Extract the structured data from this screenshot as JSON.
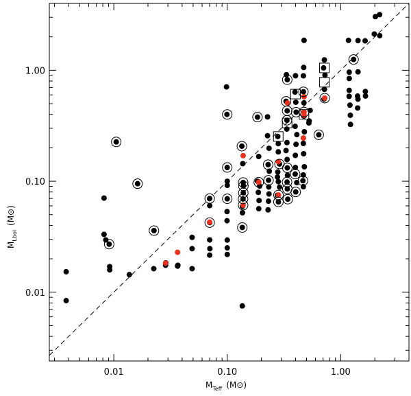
{
  "chart_data": {
    "type": "scatter",
    "xscale": "log",
    "yscale": "log",
    "xlim": [
      0.0027,
      4.0
    ],
    "ylim": [
      0.0024,
      4.0
    ],
    "xticks": [
      {
        "value": 0.01,
        "label": "0.01"
      },
      {
        "value": 0.1,
        "label": "0.10"
      },
      {
        "value": 1.0,
        "label": "1.00"
      }
    ],
    "yticks": [
      {
        "value": 0.01,
        "label": "0.01"
      },
      {
        "value": 0.1,
        "label": "0.10"
      },
      {
        "value": 1.0,
        "label": "1.00"
      }
    ],
    "xlabel": {
      "main": "M",
      "sub": "Teff",
      "unit": "(M⊙)"
    },
    "ylabel": {
      "main": "M",
      "sub": "Lbol",
      "unit": "(M⊙)"
    },
    "reference_line": {
      "style": "dashed",
      "relation": "y = x"
    },
    "grid": false,
    "colors": {
      "black_points": "#000000",
      "red_points": "#e8321e"
    },
    "series": [
      {
        "marker": "filled-circle",
        "color": "#000000",
        "points": [
          [
            0.0038,
            0.0153
          ],
          [
            0.0038,
            0.0084
          ],
          [
            0.0082,
            0.0705
          ],
          [
            0.0082,
            0.0332
          ],
          [
            0.0085,
            0.0296
          ],
          [
            0.0091,
            0.0271
          ],
          [
            0.0092,
            0.017
          ],
          [
            0.0092,
            0.0159
          ],
          [
            0.0105,
            0.226
          ],
          [
            0.0137,
            0.0144
          ],
          [
            0.0162,
            0.095
          ],
          [
            0.0226,
            0.0359
          ],
          [
            0.0225,
            0.0163
          ],
          [
            0.0287,
            0.0184
          ],
          [
            0.0286,
            0.0175
          ],
          [
            0.0365,
            0.0172
          ],
          [
            0.0367,
            0.0175
          ],
          [
            0.049,
            0.0163
          ],
          [
            0.049,
            0.0247
          ],
          [
            0.049,
            0.0312
          ],
          [
            0.07,
            0.0603
          ],
          [
            0.0699,
            0.0698
          ],
          [
            0.0701,
            0.0424
          ],
          [
            0.07,
            0.0296
          ],
          [
            0.0703,
            0.0247
          ],
          [
            0.07,
            0.0216
          ],
          [
            0.0985,
            0.708
          ],
          [
            0.0994,
            0.4
          ],
          [
            0.0999,
            0.133
          ],
          [
            0.1,
            0.1
          ],
          [
            0.1,
            0.0918
          ],
          [
            0.1,
            0.0695
          ],
          [
            0.0996,
            0.0533
          ],
          [
            0.0996,
            0.0441
          ],
          [
            0.1,
            0.0295
          ],
          [
            0.1,
            0.0251
          ],
          [
            0.1,
            0.0219
          ],
          [
            0.1346,
            0.207
          ],
          [
            0.1371,
            0.144
          ],
          [
            0.1382,
            0.0975
          ],
          [
            0.139,
            0.0906
          ],
          [
            0.1386,
            0.0787
          ],
          [
            0.1379,
            0.0692
          ],
          [
            0.1361,
            0.0594
          ],
          [
            0.1363,
            0.052
          ],
          [
            0.1358,
            0.0383
          ],
          [
            0.1358,
            0.00752
          ],
          [
            0.1848,
            0.378
          ],
          [
            0.1894,
            0.167
          ],
          [
            0.1849,
            0.1
          ],
          [
            0.1931,
            0.0905
          ],
          [
            0.1879,
            0.0794
          ],
          [
            0.1908,
            0.067
          ],
          [
            0.1896,
            0.0565
          ],
          [
            0.2266,
            0.38
          ],
          [
            0.2266,
            0.257
          ],
          [
            0.2337,
            0.198
          ],
          [
            0.2294,
            0.141
          ],
          [
            0.2348,
            0.123
          ],
          [
            0.2313,
            0.102
          ],
          [
            0.2325,
            0.0888
          ],
          [
            0.2335,
            0.0768
          ],
          [
            0.2311,
            0.0661
          ],
          [
            0.2291,
            0.0552
          ],
          [
            0.2789,
            0.253
          ],
          [
            0.2819,
            0.218
          ],
          [
            0.2819,
            0.184
          ],
          [
            0.2888,
            0.143
          ],
          [
            0.279,
            0.121
          ],
          [
            0.2771,
            0.109
          ],
          [
            0.2822,
            0.0992
          ],
          [
            0.2894,
            0.0885
          ],
          [
            0.2764,
            0.0747
          ],
          [
            0.2826,
            0.0651
          ],
          [
            0.3325,
            0.911
          ],
          [
            0.3383,
            0.822
          ],
          [
            0.3302,
            0.525
          ],
          [
            0.3376,
            0.431
          ],
          [
            0.336,
            0.354
          ],
          [
            0.335,
            0.295
          ],
          [
            0.3363,
            0.223
          ],
          [
            0.3298,
            0.189
          ],
          [
            0.3372,
            0.157
          ],
          [
            0.3386,
            0.132
          ],
          [
            0.3398,
            0.113
          ],
          [
            0.337,
            0.0983
          ],
          [
            0.3387,
            0.0853
          ],
          [
            0.3418,
            0.0689
          ],
          [
            0.3999,
            0.892
          ],
          [
            0.3958,
            0.636
          ],
          [
            0.4022,
            0.515
          ],
          [
            0.4051,
            0.419
          ],
          [
            0.3972,
            0.312
          ],
          [
            0.4109,
            0.263
          ],
          [
            0.4041,
            0.215
          ],
          [
            0.3985,
            0.171
          ],
          [
            0.3991,
            0.133
          ],
          [
            0.3972,
            0.116
          ],
          [
            0.4101,
            0.0972
          ],
          [
            0.4016,
            0.0801
          ],
          [
            0.4755,
            1.86
          ],
          [
            0.4723,
            1.06
          ],
          [
            0.4695,
            0.891
          ],
          [
            0.4697,
            0.64
          ],
          [
            0.4744,
            0.508
          ],
          [
            0.4741,
            0.386
          ],
          [
            0.4787,
            0.279
          ],
          [
            0.4688,
            0.219
          ],
          [
            0.4716,
            0.177
          ],
          [
            0.4786,
            0.135
          ],
          [
            0.4683,
            0.114
          ],
          [
            0.4647,
            0.101
          ],
          [
            0.4689,
            0.0893
          ],
          [
            0.5244,
            0.335
          ],
          [
            0.5277,
            0.349
          ],
          [
            0.5384,
            0.435
          ],
          [
            0.6413,
            0.262
          ],
          [
            0.7183,
            1.24
          ],
          [
            0.7072,
            1.05
          ],
          [
            0.7272,
            0.902
          ],
          [
            0.7192,
            0.673
          ],
          [
            0.7126,
            0.55
          ],
          [
            1.1718,
            1.86
          ],
          [
            1.1905,
            0.962
          ],
          [
            1.1908,
            0.843
          ],
          [
            1.1893,
            0.659
          ],
          [
            1.1879,
            0.582
          ],
          [
            1.2081,
            0.485
          ],
          [
            1.2172,
            0.393
          ],
          [
            1.2207,
            0.325
          ],
          [
            1.3008,
            1.25
          ],
          [
            1.4227,
            1.85
          ],
          [
            1.4223,
            0.967
          ],
          [
            1.4093,
            0.585
          ],
          [
            1.4205,
            0.549
          ],
          [
            1.4111,
            0.457
          ],
          [
            1.6434,
            1.84
          ],
          [
            1.6515,
            0.643
          ],
          [
            1.6551,
            0.586
          ],
          [
            2.0218,
            3.04
          ],
          [
            1.9804,
            2.12
          ],
          [
            2.2044,
            3.17
          ],
          [
            2.2099,
            2.05
          ]
        ]
      },
      {
        "marker": "filled-circle",
        "color": "#e8321e",
        "points": [
          [
            0.0286,
            0.0183
          ],
          [
            0.0365,
            0.0229
          ],
          [
            0.07,
            0.0428
          ],
          [
            0.1381,
            0.17
          ],
          [
            0.1381,
            0.0609
          ],
          [
            0.1896,
            0.0981
          ],
          [
            0.2818,
            0.15
          ],
          [
            0.2828,
            0.0752
          ],
          [
            0.3393,
            0.507
          ],
          [
            0.4753,
            0.576
          ],
          [
            0.4753,
            0.42
          ],
          [
            0.4753,
            0.393
          ],
          [
            0.4691,
            0.245
          ],
          [
            0.7234,
            0.561
          ]
        ]
      }
    ],
    "circled_points": [
      [
        0.0105,
        0.226
      ],
      [
        0.0162,
        0.095
      ],
      [
        0.0091,
        0.0271
      ],
      [
        0.0226,
        0.0359
      ],
      [
        0.07,
        0.0424
      ],
      [
        0.07,
        0.0698
      ],
      [
        0.1,
        0.4
      ],
      [
        0.1,
        0.133
      ],
      [
        0.1,
        0.0695
      ],
      [
        0.1358,
        0.0383
      ],
      [
        0.1381,
        0.0609
      ],
      [
        0.1346,
        0.207
      ],
      [
        0.1382,
        0.0975
      ],
      [
        0.139,
        0.0906
      ],
      [
        0.1386,
        0.0787
      ],
      [
        0.1379,
        0.0692
      ],
      [
        0.1848,
        0.378
      ],
      [
        0.1896,
        0.0981
      ],
      [
        0.2294,
        0.141
      ],
      [
        0.2313,
        0.102
      ],
      [
        0.2828,
        0.0752
      ],
      [
        0.2888,
        0.143
      ],
      [
        0.2826,
        0.0651
      ],
      [
        0.3383,
        0.822
      ],
      [
        0.3302,
        0.525
      ],
      [
        0.3376,
        0.431
      ],
      [
        0.336,
        0.354
      ],
      [
        0.3386,
        0.132
      ],
      [
        0.337,
        0.0983
      ],
      [
        0.3387,
        0.0853
      ],
      [
        0.3418,
        0.0689
      ],
      [
        0.3972,
        0.116
      ],
      [
        0.4051,
        0.419
      ],
      [
        0.4016,
        0.0801
      ],
      [
        0.4697,
        0.64
      ],
      [
        0.4753,
        0.42
      ],
      [
        0.4647,
        0.101
      ],
      [
        0.6413,
        0.262
      ],
      [
        0.7234,
        0.561
      ],
      [
        1.3008,
        1.25
      ]
    ],
    "boxed_points": [
      [
        0.2819,
        0.253
      ],
      [
        0.3376,
        0.335
      ],
      [
        0.3998,
        0.61
      ],
      [
        0.4753,
        0.4
      ],
      [
        0.7183,
        1.05
      ],
      [
        0.7192,
        0.78
      ]
    ]
  }
}
